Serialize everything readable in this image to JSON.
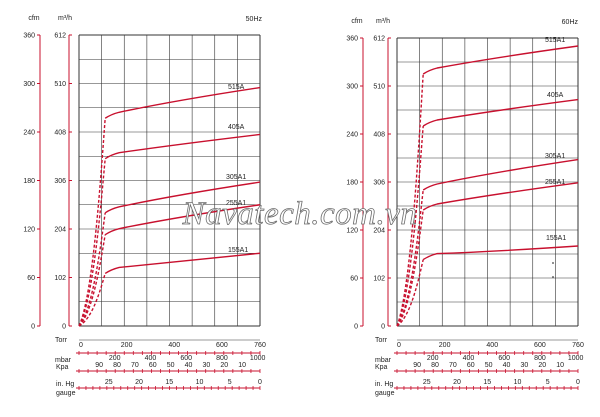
{
  "watermark": "Navatech.com.vn",
  "chart_data": [
    {
      "type": "line",
      "title": "50Hz",
      "y_unit_cfm": "cfm",
      "y_unit_m3h": "m³/h",
      "cfm_ticks": [
        "360",
        "300",
        "240",
        "180",
        "120",
        "60",
        "0"
      ],
      "m3h_ticks": [
        "612",
        "510",
        "408",
        "306",
        "204",
        "102",
        "0"
      ],
      "ylim": [
        0,
        360
      ],
      "xlim": [
        0,
        760
      ],
      "torr_label": "Torr",
      "torr_ticks": [
        "0",
        "200",
        "400",
        "600",
        "760"
      ],
      "mbar_label": "mbar",
      "mbar_ticks": [
        "200",
        "400",
        "600",
        "800",
        "1000"
      ],
      "kpa_label": "Kpa",
      "kpa_ticks": [
        "90",
        "80",
        "70",
        "60",
        "50",
        "40",
        "30",
        "20",
        "10"
      ],
      "inhg_label": "in. Hg",
      "gauge_label": "gauge",
      "inhg_ticks": [
        "25",
        "20",
        "15",
        "10",
        "5",
        "0"
      ],
      "series": [
        {
          "name": "515A",
          "label": "515A",
          "x": [
            0,
            110,
            760
          ],
          "y": [
            0,
            257,
            295
          ]
        },
        {
          "name": "405A",
          "label": "405A",
          "x": [
            0,
            110,
            760
          ],
          "y": [
            0,
            207,
            237
          ]
        },
        {
          "name": "305A1",
          "label": "305A1",
          "x": [
            0,
            110,
            760
          ],
          "y": [
            0,
            140,
            178
          ]
        },
        {
          "name": "255A1",
          "label": "255A1",
          "x": [
            0,
            110,
            760
          ],
          "y": [
            0,
            113,
            150
          ]
        },
        {
          "name": "155A1",
          "label": "155A1",
          "x": [
            0,
            110,
            760
          ],
          "y": [
            0,
            65,
            90
          ]
        }
      ]
    },
    {
      "type": "line",
      "title": "60Hz",
      "y_unit_cfm": "cfm",
      "y_unit_m3h": "m³/h",
      "cfm_ticks": [
        "360",
        "300",
        "240",
        "180",
        "120",
        "60",
        "0"
      ],
      "m3h_ticks": [
        "612",
        "510",
        "408",
        "306",
        "204",
        "102",
        "0"
      ],
      "ylim": [
        0,
        360
      ],
      "xlim": [
        0,
        760
      ],
      "torr_label": "Torr",
      "torr_ticks": [
        "0",
        "200",
        "400",
        "600",
        "760"
      ],
      "mbar_label": "mbar",
      "mbar_ticks": [
        "200",
        "400",
        "600",
        "800",
        "1000"
      ],
      "kpa_label": "Kpa",
      "kpa_ticks": [
        "90",
        "80",
        "70",
        "60",
        "50",
        "40",
        "30",
        "20",
        "10"
      ],
      "inhg_label": "in. Hg",
      "gauge_label": "gauge",
      "inhg_ticks": [
        "25",
        "20",
        "15",
        "10",
        "5",
        "0"
      ],
      "series": [
        {
          "name": "515A1",
          "label": "515A1",
          "x": [
            0,
            110,
            760
          ],
          "y": [
            0,
            315,
            350
          ]
        },
        {
          "name": "405A",
          "label": "405A",
          "x": [
            0,
            110,
            760
          ],
          "y": [
            0,
            250,
            283
          ]
        },
        {
          "name": "305A1",
          "label": "305A1",
          "x": [
            0,
            110,
            760
          ],
          "y": [
            0,
            170,
            208
          ]
        },
        {
          "name": "255A1",
          "label": "255A1",
          "x": [
            0,
            110,
            760
          ],
          "y": [
            0,
            145,
            179
          ]
        },
        {
          "name": "155A1",
          "label": "155A1",
          "x": [
            0,
            110,
            760
          ],
          "y": [
            0,
            83,
            100
          ]
        }
      ]
    }
  ]
}
